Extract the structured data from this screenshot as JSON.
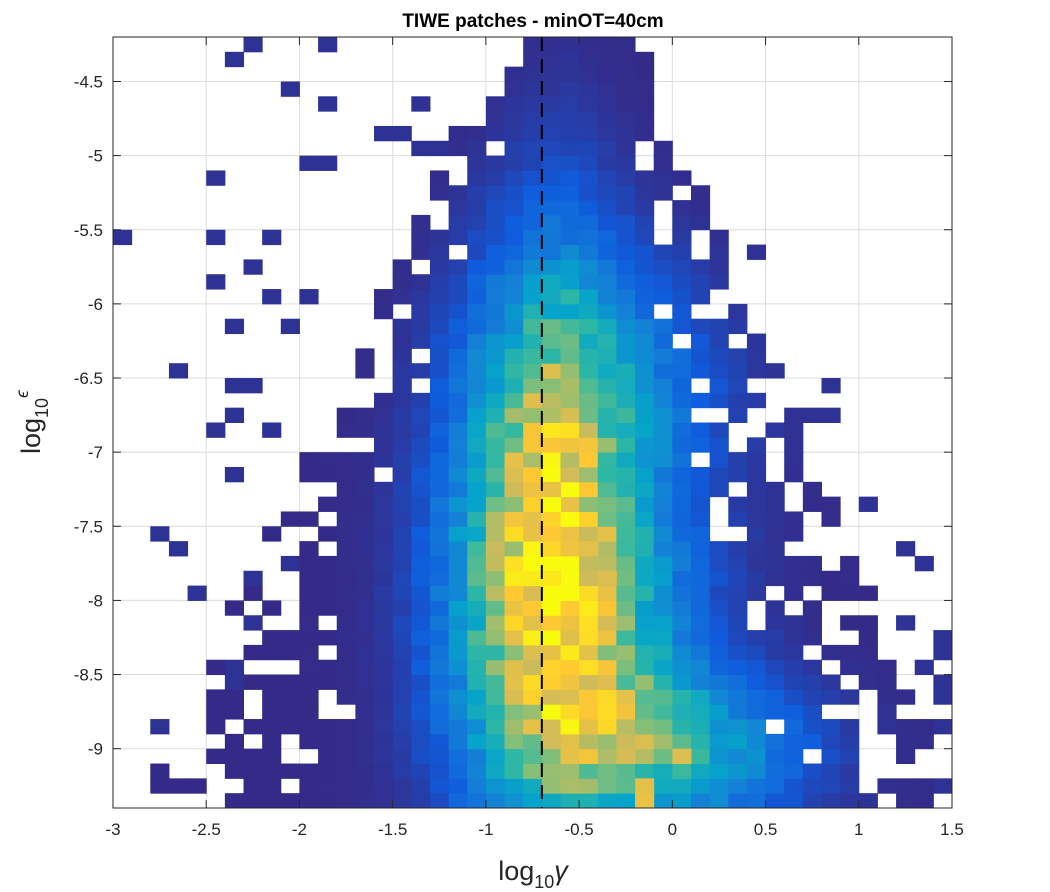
{
  "chart_data": {
    "type": "heatmap",
    "title": "TIWE patches - minOT=40cm",
    "xlabel": {
      "base": "log",
      "sub": "10",
      "sym": "γ"
    },
    "ylabel": {
      "base": "log",
      "sub": "10",
      "sym": "ϵ"
    },
    "xlim": [
      -3,
      1.5
    ],
    "ylim": [
      -9.4,
      -4.2
    ],
    "xticks": [
      -3,
      -2.5,
      -2,
      -1.5,
      -1,
      -0.5,
      0,
      0.5,
      1,
      1.5
    ],
    "xtick_labels": [
      "-3",
      "-2.5",
      "-2",
      "-1.5",
      "-1",
      "-0.5",
      "0",
      "0.5",
      "1",
      "1.5"
    ],
    "yticks": [
      -4.5,
      -5,
      -5.5,
      -6,
      -6.5,
      -7,
      -7.5,
      -8,
      -8.5,
      -9
    ],
    "ytick_labels": [
      "-4.5",
      "-5",
      "-5.5",
      "-6",
      "-6.5",
      "-7",
      "-7.5",
      "-8",
      "-8.5",
      "-9"
    ],
    "grid": true,
    "bin_width_x": 0.1,
    "bin_width_y": 0.1,
    "colormap": "parula",
    "colormap_stops": [
      "#352a87",
      "#0f5cdd",
      "#1481d6",
      "#06a4ca",
      "#2eb7a4",
      "#87bf77",
      "#d1bb59",
      "#fec832",
      "#f9fb0e"
    ],
    "vline": {
      "x": -0.7,
      "style": "dashed",
      "color": "#000000"
    },
    "intensity_model": {
      "description": "Per-bin normalized count (0-1) estimated from color: sum of gaussian ridges",
      "ridges": [
        {
          "x": -0.7,
          "y": -7.5,
          "sx": 0.35,
          "sy": 1.2,
          "a": 0.72
        },
        {
          "x": -0.45,
          "y": -8.3,
          "sx": 0.45,
          "sy": 0.8,
          "a": 0.45
        },
        {
          "x": 0.1,
          "y": -9.0,
          "sx": 0.5,
          "sy": 0.35,
          "a": 0.5
        },
        {
          "x": -0.2,
          "y": -6.5,
          "sx": 0.5,
          "sy": 0.6,
          "a": 0.25
        }
      ],
      "hot_cells": [
        {
          "x": -0.65,
          "y": -7.35,
          "v": 1.0
        },
        {
          "x": -0.65,
          "y": -7.25,
          "v": 0.82
        },
        {
          "x": -0.65,
          "y": -7.85,
          "v": 0.95
        },
        {
          "x": -0.45,
          "y": -7.65,
          "v": 0.8
        },
        {
          "x": -0.35,
          "y": -7.85,
          "v": 0.78
        },
        {
          "x": -0.15,
          "y": -9.35,
          "v": 0.82
        },
        {
          "x": -0.15,
          "y": -9.25,
          "v": 0.8
        },
        {
          "x": 0.05,
          "y": -9.05,
          "v": 0.78
        },
        {
          "x": -0.25,
          "y": -9.05,
          "v": 0.76
        }
      ],
      "sparse_outliers": [
        [
          -2.25,
          -4.25
        ],
        [
          -1.85,
          -4.25
        ],
        [
          -2.35,
          -4.35
        ],
        [
          -2.05,
          -4.55
        ],
        [
          -1.85,
          -4.65
        ],
        [
          -1.35,
          -4.65
        ],
        [
          -0.95,
          -4.75
        ],
        [
          -1.45,
          -4.85
        ],
        [
          -1.55,
          -4.85
        ],
        [
          -1.35,
          -4.95
        ],
        [
          -1.25,
          -4.95
        ],
        [
          -1.15,
          -4.95
        ],
        [
          -2.45,
          -5.15
        ],
        [
          -1.05,
          -5.15
        ],
        [
          -1.25,
          -5.15
        ],
        [
          -1.95,
          -5.05
        ],
        [
          -1.85,
          -5.05
        ],
        [
          -2.95,
          -5.55
        ],
        [
          -2.15,
          -5.55
        ],
        [
          -2.45,
          -5.55
        ],
        [
          -2.45,
          -5.85
        ],
        [
          -2.25,
          -5.75
        ],
        [
          -2.15,
          -5.95
        ],
        [
          -1.95,
          -5.95
        ],
        [
          -2.35,
          -6.15
        ],
        [
          -2.05,
          -6.15
        ],
        [
          -2.65,
          -6.45
        ],
        [
          -2.35,
          -6.55
        ],
        [
          -2.25,
          -6.55
        ],
        [
          -2.35,
          -6.75
        ],
        [
          -2.45,
          -6.85
        ],
        [
          -2.15,
          -6.85
        ],
        [
          -2.35,
          -7.15
        ],
        [
          -2.75,
          -7.55
        ],
        [
          -2.65,
          -7.65
        ],
        [
          -2.55,
          -8.0
        ],
        [
          -2.25,
          -7.85
        ],
        [
          -2.05,
          -7.75
        ],
        [
          -2.25,
          -8.15
        ],
        [
          -2.05,
          -8.25
        ],
        [
          -2.35,
          -8.45
        ],
        [
          -2.35,
          -8.55
        ],
        [
          -2.35,
          -8.65
        ],
        [
          -2.75,
          -8.85
        ],
        [
          -2.05,
          -8.55
        ],
        [
          0.45,
          -5.65
        ],
        [
          0.85,
          -6.55
        ],
        [
          0.85,
          -6.75
        ],
        [
          0.75,
          -6.75
        ],
        [
          1.05,
          -7.35
        ],
        [
          1.25,
          -7.65
        ],
        [
          1.35,
          -7.75
        ],
        [
          1.25,
          -8.2
        ],
        [
          1.45,
          -8.25
        ],
        [
          1.45,
          -8.35
        ],
        [
          1.35,
          -8.45
        ],
        [
          1.45,
          -8.55
        ],
        [
          1.45,
          -8.65
        ],
        [
          1.35,
          -8.85
        ],
        [
          1.45,
          -8.85
        ],
        [
          1.45,
          -9.25
        ]
      ]
    }
  }
}
